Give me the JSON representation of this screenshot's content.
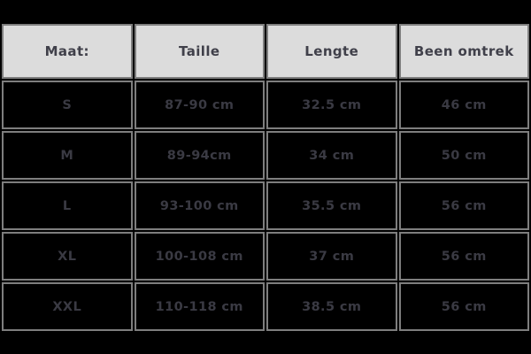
{
  "theme": {
    "page-bg": "#000000",
    "border-color": "#7e7e7e",
    "header-bg": "#dcdcdc",
    "header-text": "#40404a",
    "cell-bg": "#000000",
    "cell-text": "#3a3a43"
  },
  "table": {
    "header": {
      "columns": [
        "Maat:",
        "Taille",
        "Lengte",
        "Been omtrek"
      ]
    },
    "body": {
      "rows": [
        {
          "maat": "S",
          "taille": "87-90 cm",
          "lengte": "32.5 cm",
          "been_omtrek": "46 cm"
        },
        {
          "maat": "M",
          "taille": "89-94cm",
          "lengte": "34 cm",
          "been_omtrek": "50 cm"
        },
        {
          "maat": "L",
          "taille": "93-100 cm",
          "lengte": "35.5 cm",
          "been_omtrek": "56 cm"
        },
        {
          "maat": "XL",
          "taille": "100-108 cm",
          "lengte": "37 cm",
          "been_omtrek": "56 cm"
        },
        {
          "maat": "XXL",
          "taille": "110-118 cm",
          "lengte": "38.5 cm",
          "been_omtrek": "56 cm"
        }
      ]
    }
  },
  "chart_data": {
    "type": "table",
    "title": "Maattabel (size chart)",
    "columns": [
      "Maat:",
      "Taille",
      "Lengte",
      "Been omtrek"
    ],
    "rows": [
      [
        "S",
        "87-90 cm",
        "32.5 cm",
        "46 cm"
      ],
      [
        "M",
        "89-94cm",
        "34 cm",
        "50 cm"
      ],
      [
        "L",
        "93-100 cm",
        "35.5 cm",
        "56 cm"
      ],
      [
        "XL",
        "100-108 cm",
        "37 cm",
        "56 cm"
      ],
      [
        "XXL",
        "110-118 cm",
        "38.5 cm",
        "56 cm"
      ]
    ],
    "layout": {
      "header_background": "#dcdcdc",
      "body_background": "#000000",
      "grid": true,
      "columns_equal_width": true
    }
  }
}
